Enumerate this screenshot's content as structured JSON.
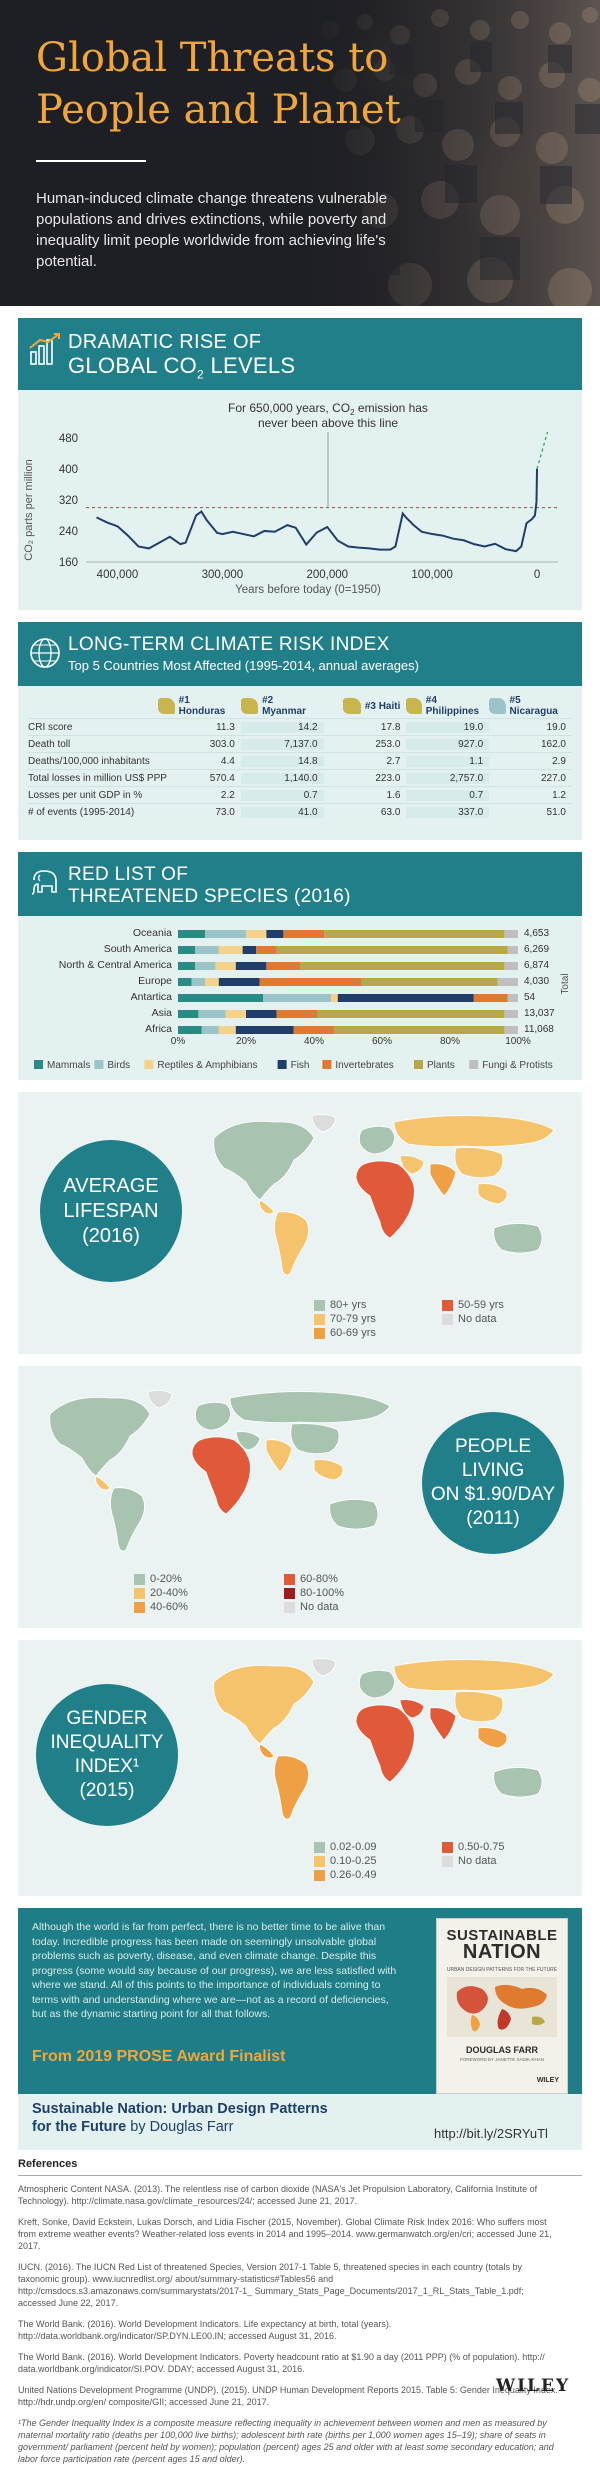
{
  "hero": {
    "title_line1": "Global Threats to",
    "title_line2": "People and Planet",
    "intro": "Human-induced climate change threatens vulnerable populations and drives extinctions, while poverty and inequality limit people worldwide from achieving life's potential."
  },
  "co2": {
    "title_line1": "DRAMATIC RISE OF",
    "title_line2": "GLOBAL CO",
    "title_sub": "2",
    "title_line2_end": " LEVELS",
    "annotation_line1": "For 650,000 years, CO",
    "annotation_sub": "2",
    "annotation_line1_end": " emission has",
    "annotation_line2": "never been above this line",
    "ylabel": "CO₂ parts per million",
    "xlabel": "Years before today (0=1950)",
    "y_ticks": [
      "480",
      "400",
      "320",
      "240",
      "160"
    ],
    "x_ticks": [
      "400,000",
      "300,000",
      "200,000",
      "100,000",
      "0"
    ],
    "colors": {
      "line": "#1e3f6b",
      "threshold": "#c0392b",
      "projection": "#3aa76d"
    }
  },
  "chart_data": {
    "type": "line",
    "title": "DRAMATIC RISE OF GLOBAL CO2 LEVELS",
    "xlabel": "Years before today (0=1950)",
    "ylabel": "CO2 parts per million",
    "xlim": [
      430000,
      -20000
    ],
    "ylim": [
      160,
      500
    ],
    "threshold": 300,
    "series": [
      {
        "x": [
          420000,
          410000,
          400000,
          390000,
          380000,
          370000,
          360000,
          350000,
          340000,
          335000,
          325000,
          320000,
          315000,
          305000,
          300000,
          290000,
          280000,
          270000,
          260000,
          250000,
          243000,
          238000,
          230000,
          220000,
          210000,
          200000,
          190000,
          180000,
          170000,
          160000,
          150000,
          140000,
          135000,
          128000,
          125000,
          118000,
          110000,
          100000,
          90000,
          80000,
          70000,
          60000,
          50000,
          40000,
          30000,
          20000,
          15000,
          10000,
          5000,
          2000,
          500,
          0
        ],
        "y": [
          275,
          262,
          252,
          228,
          200,
          195,
          210,
          225,
          206,
          210,
          280,
          290,
          268,
          235,
          232,
          238,
          232,
          226,
          240,
          238,
          248,
          255,
          248,
          205,
          236,
          250,
          215,
          200,
          197,
          195,
          192,
          192,
          200,
          285,
          275,
          256,
          238,
          232,
          228,
          220,
          216,
          206,
          200,
          207,
          193,
          188,
          200,
          260,
          270,
          280,
          315,
          400
        ]
      }
    ]
  },
  "risk": {
    "title": "LONG-TERM CLIMATE RISK INDEX",
    "subtitle": "Top 5 Countries Most Affected (1995-2014, annual averages)",
    "countries": [
      "#1 Honduras",
      "#2 Myanmar",
      "#3 Haiti",
      "#4 Philippines",
      "#5 Nicaragua"
    ],
    "rows": [
      {
        "label": "CRI score",
        "values": [
          "11.3",
          "14.2",
          "17.8",
          "19.0",
          "19.0"
        ]
      },
      {
        "label": "Death toll",
        "values": [
          "303.0",
          "7,137.0",
          "253.0",
          "927.0",
          "162.0"
        ]
      },
      {
        "label": "Deaths/100,000 inhabitants",
        "values": [
          "4.4",
          "14.8",
          "2.7",
          "1.1",
          "2.9"
        ]
      },
      {
        "label": "Total losses in million US$ PPP",
        "values": [
          "570.4",
          "1,140.0",
          "223.0",
          "2,757.0",
          "227.0"
        ]
      },
      {
        "label": "Losses per unit GDP in %",
        "values": [
          "2.2",
          "0.7",
          "1.6",
          "0.7",
          "1.2"
        ]
      },
      {
        "label": "# of events (1995-2014)",
        "values": [
          "73.0",
          "41.0",
          "63.0",
          "337.0",
          "51.0"
        ]
      }
    ]
  },
  "redlist": {
    "title_line1": "RED LIST OF",
    "title_line2": "THREATENED SPECIES (2016)",
    "regions": [
      "Oceania",
      "South America",
      "North & Central America",
      "Europe",
      "Antartica",
      "Asia",
      "Africa"
    ],
    "totals": [
      "4,653",
      "6,269",
      "6,874",
      "4,030",
      "54",
      "13,037",
      "11,068"
    ],
    "total_label": "Total",
    "x_ticks": [
      "0%",
      "20%",
      "40%",
      "60%",
      "80%",
      "100%"
    ],
    "legend": [
      "Mammals",
      "Birds",
      "Reptiles & Amphibians",
      "Fish",
      "Invertebrates",
      "Plants",
      "Fungi & Protists"
    ],
    "colors": [
      "#2a8a86",
      "#9bc4c9",
      "#f4d28a",
      "#213d69",
      "#e07a2f",
      "#b6a842",
      "#bfbfbf"
    ]
  },
  "lifespan": {
    "circle": [
      "AVERAGE",
      "LIFESPAN",
      "(2016)"
    ],
    "legend": [
      "80+ yrs",
      "70-79 yrs",
      "60-69 yrs",
      "50-59 yrs",
      "No data"
    ],
    "colors": [
      "#a8c4b0",
      "#f5c36b",
      "#f0a044",
      "#e05a3a",
      "#dcdcdc"
    ]
  },
  "poverty": {
    "circle": [
      "PEOPLE",
      "LIVING",
      "ON $1.90/DAY",
      "(2011)"
    ],
    "legend": [
      "0-20%",
      "20-40%",
      "40-60%",
      "60-80%",
      "80-100%",
      "No data"
    ],
    "colors": [
      "#a8c4b0",
      "#f5c36b",
      "#f0a044",
      "#e05a3a",
      "#9b1d20",
      "#dcdcdc"
    ]
  },
  "gender": {
    "circle": [
      "GENDER",
      "INEQUALITY",
      "INDEX¹",
      "(2015)"
    ],
    "legend": [
      "0.02-0.09",
      "0.10-0.25",
      "0.26-0.49",
      "0.50-0.75",
      "No data"
    ],
    "colors": [
      "#a8c4b0",
      "#f5c36b",
      "#f0a044",
      "#e05a3a",
      "#dcdcdc"
    ]
  },
  "book": {
    "body": "Although the world is far from perfect, there is no better time to be alive than today. Incredible progress has been made on seemingly unsolvable global problems such as poverty, disease, and even climate change. Despite this progress (some would say because of our progress), we are less satisfied with where we stand. All of this points to the importance of individuals coming to terms with and understanding where we are—not as a record of deficiencies, but as the dynamic starting point for all that follows.",
    "award": "From 2019 PROSE Award Finalist",
    "book_title_line1": "Sustainable Nation: Urban Design Patterns",
    "book_title_line2": "for the Future",
    "author": " by Douglas Farr",
    "cover_title1": "SUSTAINABLE",
    "cover_title2": "NATION",
    "cover_sub": "URBAN DESIGN PATTERNS FOR THE FUTURE",
    "cover_author": "DOUGLAS FARR",
    "cover_foreword": "FOREWORD BY JANETTE SADIK-KHAN",
    "cover_publisher": "WILEY",
    "link": "http://bit.ly/2SRYuTl"
  },
  "references": {
    "heading": "References",
    "items": [
      "Atmospheric Content NASA. (2013). The relentless rise of carbon dioxide (NASA's Jet Propulsion Laboratory, California Institute of Technology). http://climate.nasa.gov/climate_resources/24/; accessed June 21, 2017.",
      "Kreft, Sonke, David Eckstein, Lukas Dorsch, and Lidia Fischer (2015, November). Global Climate Risk Index 2016: Who suffers most from extreme weather events? Weather-related loss events in 2014 and 1995–2014. www.germanwatch.org/en/cri; accessed June 21, 2017.",
      "IUCN. (2016). The IUCN Red List of threatened Species, Version 2017-1 Table 5, threatened species in each country (totals by taxonomic group). www.iucnredlist.org/ about/summary-statistics#Tables56 and http://cmsdocs.s3.amazonaws.com/summarystats/2017-1_ Summary_Stats_Page_Documents/2017_1_RL_Stats_Table_1.pdf; accessed June 22, 2017.",
      "The World Bank. (2016). World Development Indicators. Life expectancy at birth, total (years). http://data.worldbank.org/indicator/SP.DYN.LE00.IN; accessed August 31, 2016.",
      "The World Bank. (2016). World Development Indicators. Poverty headcount ratio at $1.90 a day (2011 PPP) (% of population). http:// data.worldbank.org/indicator/SI.POV. DDAY; accessed August 31, 2016.",
      "United Nations Development Programme (UNDP). (2015). UNDP Human Development Reports 2015. Table 5: Gender Inequality Index. http://hdr.undp.org/en/ composite/GII; accessed June 21, 2017.",
      "¹The Gender Inequality Index is a composite measure reflecting inequality in achievement between women and men as measured by maternal mortality ratio (deaths per 100,000 live births); adolescent birth rate (births per 1,000 women ages 15–19); share of seats in government/ parliament (percent held by women); population (percent) ages 25 and older with at least some secondary education; and labor force participation rate (percent ages 15 and older)."
    ]
  },
  "publisher": "WILEY"
}
